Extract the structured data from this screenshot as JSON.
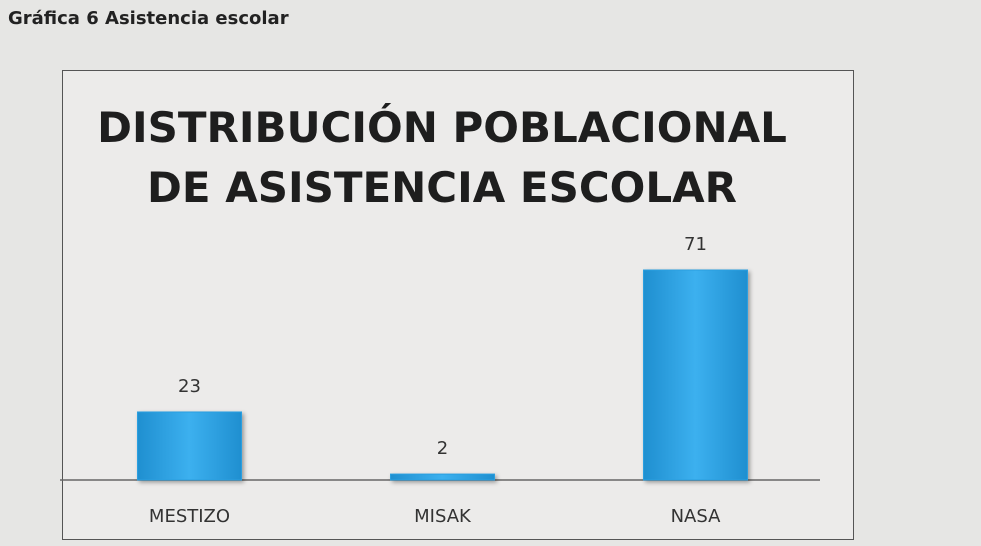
{
  "heading": "Gráfica 6 Asistencia escolar",
  "chart_data": {
    "type": "bar",
    "title": "DISTRIBUCIÓN POBLACIONAL DE ASISTENCIA ESCOLAR",
    "categories": [
      "MESTIZO",
      "MISAK",
      "NASA"
    ],
    "values": [
      23,
      2,
      71
    ],
    "color": "#2a9fe0"
  }
}
